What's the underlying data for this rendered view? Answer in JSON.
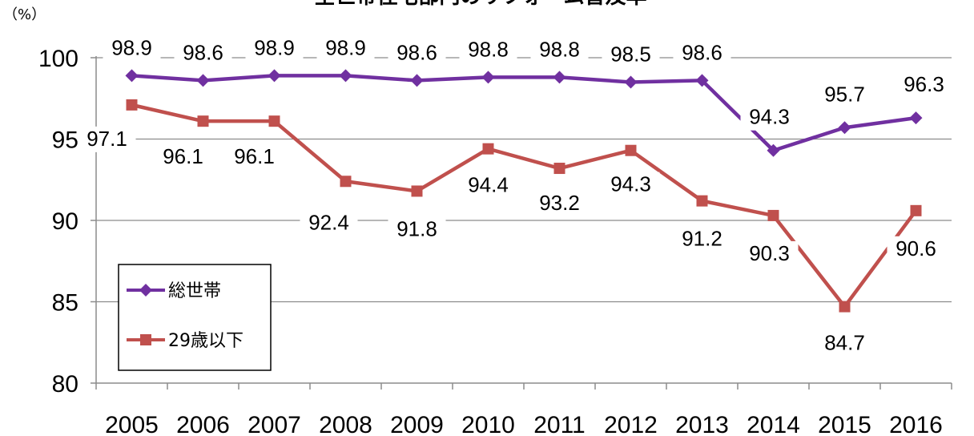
{
  "chart_data": {
    "type": "line",
    "title": "全世帯住宅部門のリフォーム普及率",
    "y_unit": "（%）",
    "categories": [
      "2005",
      "2006",
      "2007",
      "2008",
      "2009",
      "2010",
      "2011",
      "2012",
      "2013",
      "2014",
      "2015",
      "2016"
    ],
    "ylim": [
      80,
      100
    ],
    "yticks": [
      "80",
      "85",
      "90",
      "95",
      "100"
    ],
    "grid": true,
    "legend_position": "bottom-left",
    "series": [
      {
        "name": "総世帯",
        "color": "#7030A0",
        "marker": "diamond",
        "values": [
          98.9,
          98.6,
          98.9,
          98.9,
          98.6,
          98.8,
          98.8,
          98.5,
          98.6,
          94.3,
          95.7,
          96.3
        ],
        "labels": [
          "98.9",
          "98.6",
          "98.9",
          "98.9",
          "98.6",
          "98.8",
          "98.8",
          "98.5",
          "98.6",
          "94.3",
          "95.7",
          "96.3"
        ]
      },
      {
        "name": "29歳以下",
        "color": "#C0504D",
        "marker": "square",
        "values": [
          97.1,
          96.1,
          96.1,
          92.4,
          91.8,
          94.4,
          93.2,
          94.3,
          91.2,
          90.3,
          84.7,
          90.6
        ],
        "labels": [
          "97.1",
          "96.1",
          "96.1",
          "92.4",
          "91.8",
          "94.4",
          "93.2",
          "94.3",
          "91.2",
          "90.3",
          "84.7",
          "90.6"
        ]
      }
    ]
  }
}
